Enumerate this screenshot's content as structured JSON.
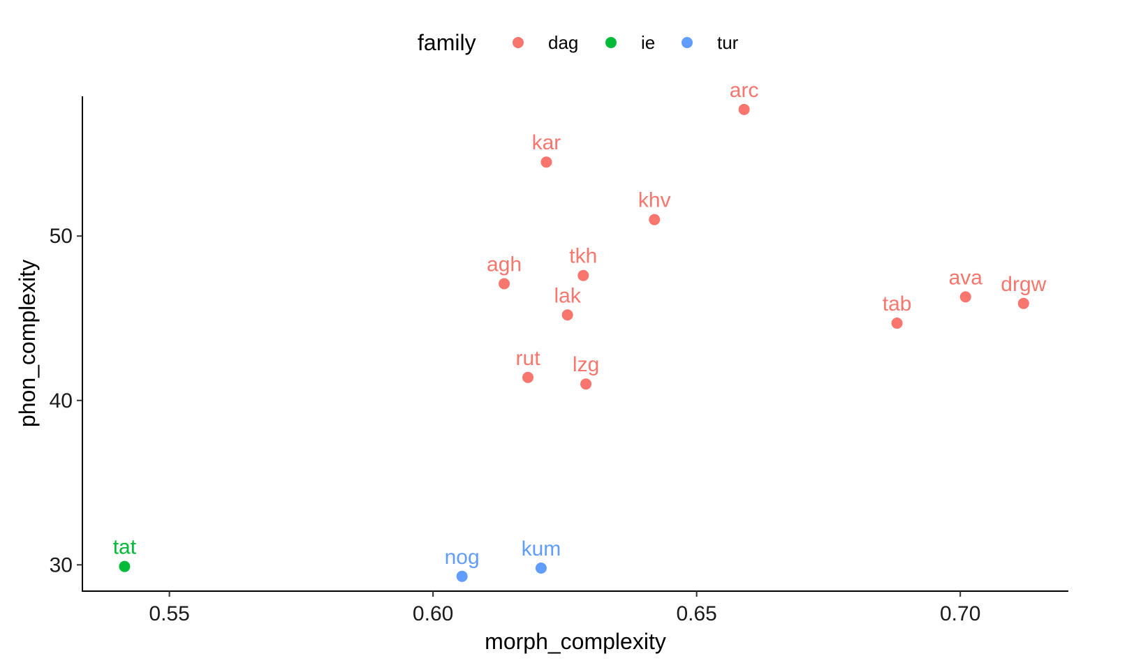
{
  "chart_data": {
    "type": "scatter",
    "xlabel": "morph_complexity",
    "ylabel": "phon_complexity",
    "xlim": [
      0.5335,
      0.7205
    ],
    "ylim": [
      28.4,
      58.5
    ],
    "xticks": [
      0.55,
      0.6,
      0.65,
      0.7
    ],
    "xtick_labels": [
      "0.55",
      "0.60",
      "0.65",
      "0.70"
    ],
    "yticks": [
      30,
      40,
      50
    ],
    "ytick_labels": [
      "30",
      "40",
      "50"
    ],
    "grid": false,
    "legend": {
      "title": "family",
      "position": "top",
      "entries": [
        {
          "key": "dag",
          "label": "dag",
          "color": "#F8766D"
        },
        {
          "key": "ie",
          "label": "ie",
          "color": "#00BA38"
        },
        {
          "key": "tur",
          "label": "tur",
          "color": "#619CFF"
        }
      ]
    },
    "points": [
      {
        "label": "arc",
        "family": "dag",
        "x": 0.659,
        "y": 57.7
      },
      {
        "label": "kar",
        "family": "dag",
        "x": 0.6215,
        "y": 54.5
      },
      {
        "label": "khv",
        "family": "dag",
        "x": 0.642,
        "y": 51.0
      },
      {
        "label": "tkh",
        "family": "dag",
        "x": 0.6285,
        "y": 47.6
      },
      {
        "label": "agh",
        "family": "dag",
        "x": 0.6135,
        "y": 47.1
      },
      {
        "label": "lak",
        "family": "dag",
        "x": 0.6255,
        "y": 45.2
      },
      {
        "label": "rut",
        "family": "dag",
        "x": 0.618,
        "y": 41.4
      },
      {
        "label": "lzg",
        "family": "dag",
        "x": 0.629,
        "y": 41.0
      },
      {
        "label": "tab",
        "family": "dag",
        "x": 0.688,
        "y": 44.7
      },
      {
        "label": "ava",
        "family": "dag",
        "x": 0.701,
        "y": 46.3
      },
      {
        "label": "drgw",
        "family": "dag",
        "x": 0.712,
        "y": 45.9
      },
      {
        "label": "tat",
        "family": "ie",
        "x": 0.5415,
        "y": 29.9
      },
      {
        "label": "nog",
        "family": "tur",
        "x": 0.6055,
        "y": 29.3
      },
      {
        "label": "kum",
        "family": "tur",
        "x": 0.6205,
        "y": 29.8
      }
    ]
  }
}
